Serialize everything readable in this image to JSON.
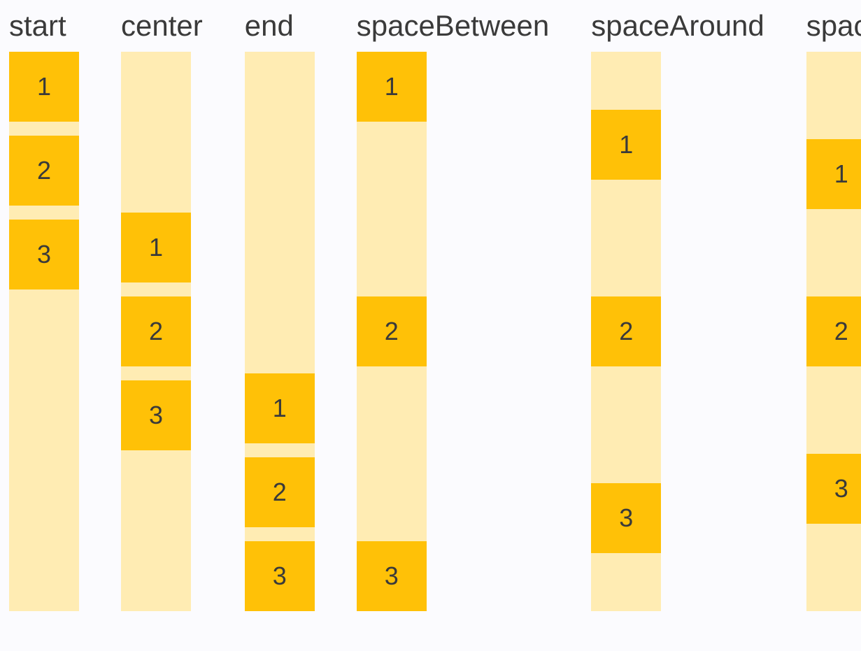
{
  "page": {
    "background_color": "#fbfbfe",
    "description_colors": {
      "box_fill": "#ffc107",
      "track_fill": "#ffecb3",
      "text": "#3a3a3a"
    }
  },
  "columns": [
    {
      "label": "start",
      "css_justify": "flex-start",
      "boxes": [
        "1",
        "2",
        "3"
      ]
    },
    {
      "label": "center",
      "css_justify": "center",
      "boxes": [
        "1",
        "2",
        "3"
      ]
    },
    {
      "label": "end",
      "css_justify": "flex-end",
      "boxes": [
        "1",
        "2",
        "3"
      ]
    },
    {
      "label": "spaceBetween",
      "css_justify": "space-between",
      "boxes": [
        "1",
        "2",
        "3"
      ]
    },
    {
      "label": "spaceAround",
      "css_justify": "space-around",
      "boxes": [
        "1",
        "2",
        "3"
      ]
    },
    {
      "label": "spaceEvenly",
      "css_justify": "space-evenly",
      "boxes": [
        "1",
        "2",
        "3"
      ]
    }
  ]
}
